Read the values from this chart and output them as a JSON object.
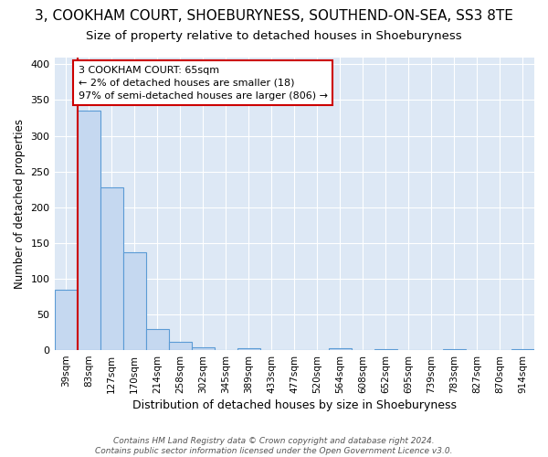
{
  "title": "3, COOKHAM COURT, SHOEBURYNESS, SOUTHEND-ON-SEA, SS3 8TE",
  "subtitle": "Size of property relative to detached houses in Shoeburyness",
  "xlabel": "Distribution of detached houses by size in Shoeburyness",
  "ylabel": "Number of detached properties",
  "categories": [
    "39sqm",
    "83sqm",
    "127sqm",
    "170sqm",
    "214sqm",
    "258sqm",
    "302sqm",
    "345sqm",
    "389sqm",
    "433sqm",
    "477sqm",
    "520sqm",
    "564sqm",
    "608sqm",
    "652sqm",
    "695sqm",
    "739sqm",
    "783sqm",
    "827sqm",
    "870sqm",
    "914sqm"
  ],
  "values": [
    85,
    335,
    228,
    137,
    29,
    12,
    4,
    0,
    3,
    0,
    0,
    0,
    3,
    0,
    2,
    0,
    0,
    2,
    0,
    0,
    2
  ],
  "bar_color": "#c5d8f0",
  "bar_edge_color": "#5b9bd5",
  "property_line_color": "#cc0000",
  "annotation_text": "3 COOKHAM COURT: 65sqm\n← 2% of detached houses are smaller (18)\n97% of semi-detached houses are larger (806) →",
  "annotation_box_color": "#ffffff",
  "annotation_box_edge_color": "#cc0000",
  "footer": "Contains HM Land Registry data © Crown copyright and database right 2024.\nContains public sector information licensed under the Open Government Licence v3.0.",
  "ylim": [
    0,
    410
  ],
  "fig_background_color": "#ffffff",
  "plot_background_color": "#dde8f5",
  "title_fontsize": 11,
  "subtitle_fontsize": 9.5,
  "ylabel_fontsize": 8.5,
  "xlabel_fontsize": 9
}
